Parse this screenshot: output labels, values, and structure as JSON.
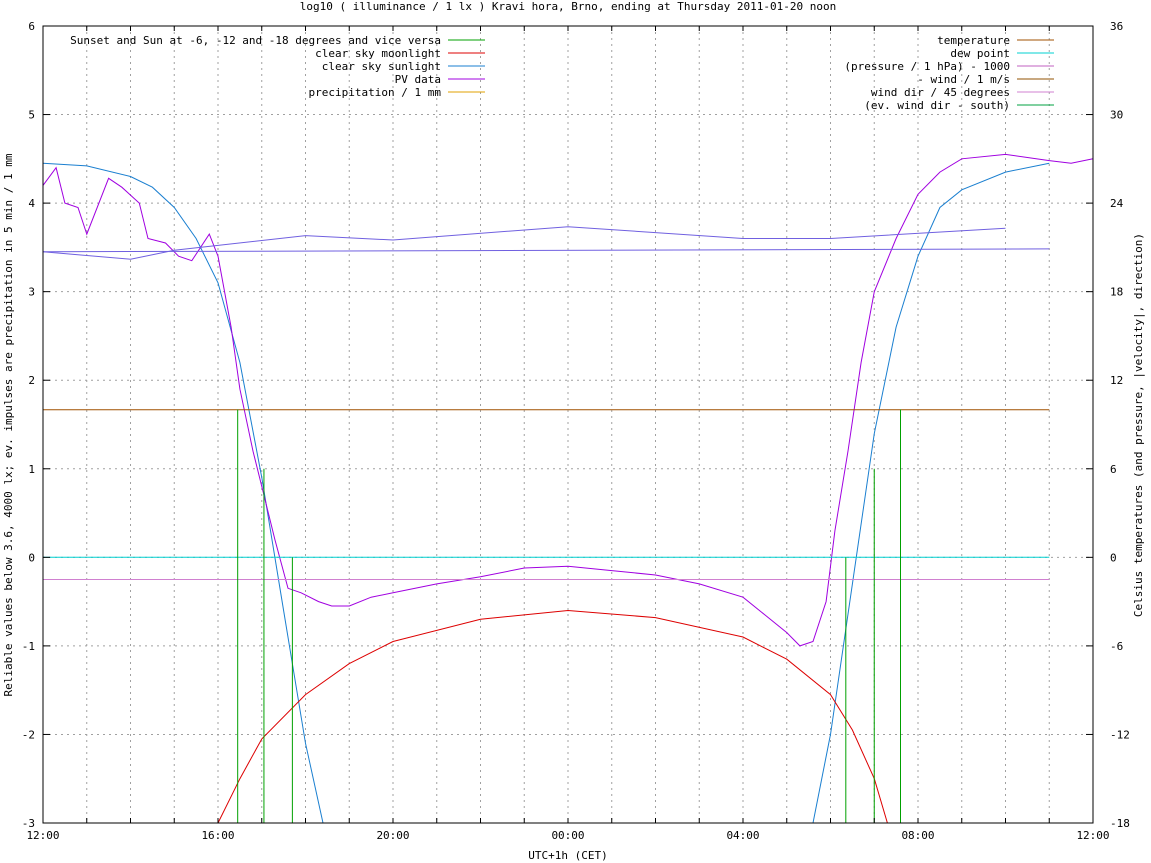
{
  "chart_data": {
    "type": "line",
    "title": "log10 ( illuminance / 1 lx ) Kravi hora, Brno, ending at Thursday 2011-01-20 noon",
    "xlabel": "UTC+1h (CET)",
    "ylabel": "Reliable values below 3.6, 4000 lx; ev. impulses are precipitation in 5 min / 1 mm",
    "y2label": "Celsius temperatures (and pressure, |velocity|, direction)",
    "x_ticks": [
      "12:00",
      "16:00",
      "20:00",
      "00:00",
      "04:00",
      "08:00",
      "12:00"
    ],
    "x_range_hours": [
      0,
      24
    ],
    "ylim": [
      -3,
      6
    ],
    "y_ticks": [
      "-3",
      "-2",
      "-1",
      "0",
      "1",
      "2",
      "3",
      "4",
      "5",
      "6"
    ],
    "y2lim": [
      -18,
      36
    ],
    "y2_ticks": [
      "-18",
      "-12",
      "-6",
      "0",
      "6",
      "12",
      "18",
      "24",
      "30",
      "36"
    ],
    "grid": true,
    "legend_left": [
      {
        "name": "Sunset and Sun at -6, -12 and -18 degrees and vice versa",
        "color": "#00a000"
      },
      {
        "name": "clear sky moonlight",
        "color": "#dd0000"
      },
      {
        "name": "clear sky sunlight",
        "color": "#1a7fd0"
      },
      {
        "name": "PV data",
        "color": "#a000e0"
      },
      {
        "name": "precipitation / 1 mm",
        "color": "#e0a000"
      }
    ],
    "legend_right": [
      {
        "name": "temperature",
        "color": "#a05000"
      },
      {
        "name": "dew point",
        "color": "#00d0d0"
      },
      {
        "name": "(pressure / 1 hPa) - 1000",
        "color": "#c060c0"
      },
      {
        "name": "- wind / 1 m/s",
        "color": "#905000"
      },
      {
        "name": "wind dir / 45 degrees",
        "color": "#d080d0"
      },
      {
        "name": "(ev. wind dir - south)",
        "color": "#00a040"
      }
    ],
    "sun_event_impulses": [
      {
        "hour": 4.45,
        "value": 1.67
      },
      {
        "hour": 5.05,
        "value": 1.0
      },
      {
        "hour": 5.7,
        "value": 0.0
      },
      {
        "hour": 6.35,
        "value": -3.0
      },
      {
        "hour": 17.75,
        "value": -3.0
      },
      {
        "hour": 18.35,
        "value": 0.0
      },
      {
        "hour": 19.0,
        "value": 1.0
      },
      {
        "hour": 19.6,
        "value": 1.67
      }
    ],
    "series": [
      {
        "name": "clear sky sunlight",
        "color": "#1a7fd0",
        "x": [
          0,
          1,
          2,
          2.5,
          3,
          3.5,
          4,
          4.5,
          5,
          5.5,
          6,
          6.4,
          17.6,
          18,
          18.5,
          19,
          19.5,
          20,
          20.5,
          21,
          22,
          23,
          23
        ],
        "y": [
          4.45,
          4.42,
          4.3,
          4.18,
          3.95,
          3.6,
          3.1,
          2.2,
          0.9,
          -0.6,
          -2.1,
          -3.0,
          -3.0,
          -2.0,
          -0.3,
          1.4,
          2.6,
          3.4,
          3.95,
          4.15,
          4.35,
          4.45,
          4.45
        ]
      },
      {
        "name": "clear sky moonlight",
        "color": "#dd0000",
        "x": [
          4.0,
          4.5,
          5,
          6,
          7,
          8,
          10,
          12,
          14,
          16,
          17,
          18,
          18.5,
          19,
          19.3
        ],
        "y": [
          -3.0,
          -2.5,
          -2.05,
          -1.55,
          -1.2,
          -0.95,
          -0.7,
          -0.6,
          -0.68,
          -0.9,
          -1.15,
          -1.55,
          -1.95,
          -2.5,
          -3.0
        ]
      },
      {
        "name": "PV data",
        "color": "#a000e0",
        "x": [
          0,
          0.3,
          0.5,
          0.8,
          1.0,
          1.5,
          1.8,
          2.2,
          2.4,
          2.8,
          3.1,
          3.4,
          3.8,
          4.0,
          4.3,
          4.5,
          4.8,
          5.0,
          5.3,
          5.6,
          5.9,
          6.3,
          6.6,
          7.0,
          7.5,
          8,
          9,
          10,
          11,
          12,
          13,
          14,
          15,
          16,
          16.5,
          17,
          17.3,
          17.6,
          17.9,
          18.1,
          18.4,
          18.7,
          19.0,
          19.5,
          20.0,
          20.5,
          21,
          22,
          23,
          23.5,
          24
        ],
        "y": [
          4.2,
          4.4,
          4.0,
          3.95,
          3.65,
          4.28,
          4.18,
          4.0,
          3.6,
          3.55,
          3.4,
          3.35,
          3.65,
          3.4,
          2.6,
          1.9,
          1.2,
          0.8,
          0.2,
          -0.35,
          -0.4,
          -0.5,
          -0.55,
          -0.55,
          -0.45,
          -0.4,
          -0.3,
          -0.22,
          -0.12,
          -0.1,
          -0.15,
          -0.2,
          -0.3,
          -0.45,
          -0.65,
          -0.85,
          -1.0,
          -0.95,
          -0.5,
          0.3,
          1.2,
          2.2,
          3.0,
          3.6,
          4.1,
          4.35,
          4.5,
          4.55,
          4.48,
          4.45,
          4.5
        ]
      },
      {
        "name": "temperature",
        "color": "#a05000",
        "x": [
          0,
          23
        ],
        "y": [
          10,
          10
        ]
      },
      {
        "name": "dew point",
        "color": "#00d0d0",
        "x": [
          0,
          23
        ],
        "y": [
          0,
          0
        ]
      },
      {
        "name": "(pressure / 1 hPa) - 1000",
        "color": "#7060e0",
        "x": [
          0,
          23
        ],
        "y": [
          20.7,
          20.9
        ]
      },
      {
        "name": "wind dir / 45 degrees",
        "color": "#d080d0",
        "x": [
          0,
          23
        ],
        "y": [
          -1.5,
          -1.5
        ]
      },
      {
        "name": "(pressure / 1 hPa) - 1000",
        "color": "#7060e0",
        "x": [
          0,
          2,
          3,
          6,
          8,
          12,
          16,
          18,
          22
        ],
        "y": [
          20.7,
          20.2,
          20.8,
          21.8,
          21.5,
          22.4,
          21.6,
          21.6,
          22.3
        ]
      }
    ]
  }
}
